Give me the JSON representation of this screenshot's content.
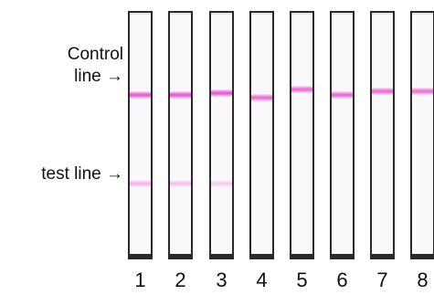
{
  "labels": {
    "control_line_1": "Control",
    "control_line_2": "line →",
    "test_line": "test line →"
  },
  "strips": [
    {
      "number": "1",
      "control_intensity": 0.95,
      "test_intensity": 0.55
    },
    {
      "number": "2",
      "control_intensity": 0.95,
      "test_intensity": 0.45
    },
    {
      "number": "3",
      "control_intensity": 0.95,
      "test_intensity": 0.35
    },
    {
      "number": "4",
      "control_intensity": 0.85,
      "test_intensity": 0.0
    },
    {
      "number": "5",
      "control_intensity": 0.85,
      "test_intensity": 0.0
    },
    {
      "number": "6",
      "control_intensity": 0.85,
      "test_intensity": 0.0
    },
    {
      "number": "7",
      "control_intensity": 0.85,
      "test_intensity": 0.0
    },
    {
      "number": "8",
      "control_intensity": 0.8,
      "test_intensity": 0.0
    }
  ],
  "colors": {
    "band": "#e852d0",
    "strip_border": "#2a2a2a",
    "strip_fill": "#fbf8fb"
  }
}
